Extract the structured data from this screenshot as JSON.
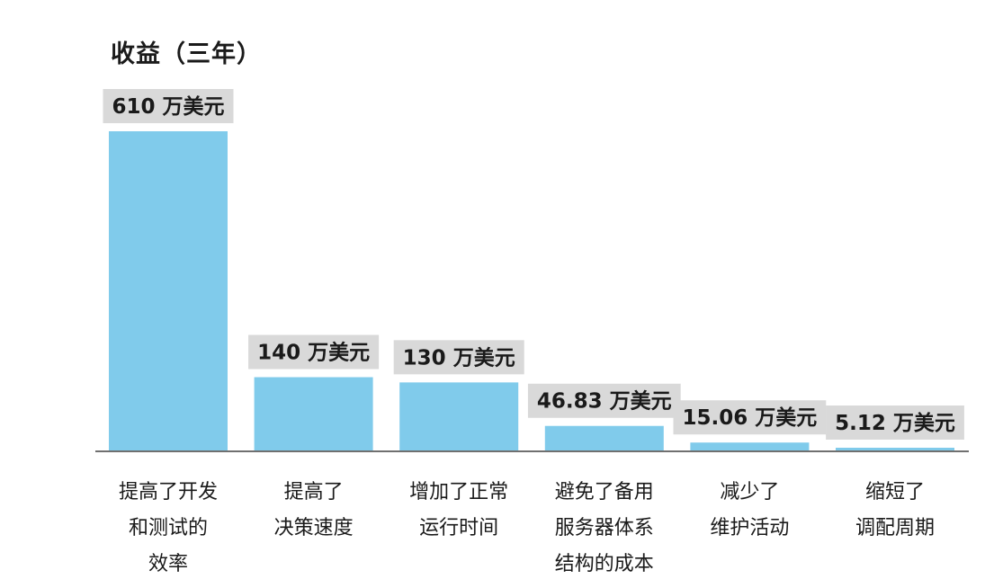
{
  "chart_data": {
    "type": "bar",
    "title": "收益（三年）",
    "categories": [
      "提高了开发\n和测试的\n效率",
      "提高了\n决策速度",
      "增加了正常\n运行时间",
      "避免了备用\n服务器体系\n结构的成本",
      "减少了\n维护活动",
      "缩短了\n调配周期"
    ],
    "values": [
      610,
      140,
      130,
      46.83,
      15.06,
      5.12
    ],
    "data_labels": [
      "610 万美元",
      "140 万美元",
      "130 万美元",
      "46.83 万美元",
      "15.06 万美元",
      "5.12 万美元"
    ],
    "unit": "万美元",
    "ylim": [
      0,
      610
    ],
    "grid": false,
    "legend": "none",
    "colors": {
      "bar": "#80cbeb",
      "label_bg": "#d9d9d9",
      "baseline": "#404040"
    }
  }
}
